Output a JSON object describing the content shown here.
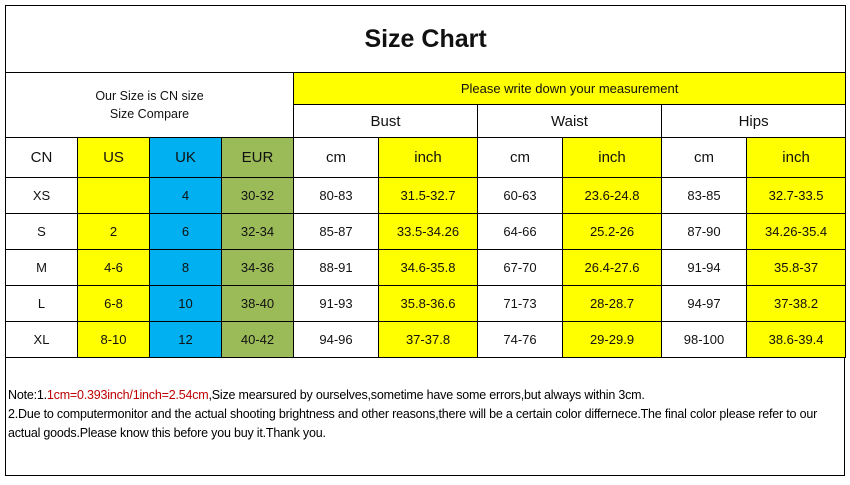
{
  "title": "Size Chart",
  "our_size": "Our Size is CN size",
  "size_compare": "Size Compare",
  "measure_prompt": "Please write down your measurement",
  "groups": [
    "Bust",
    "Waist",
    "Hips"
  ],
  "columns": [
    "CN",
    "US",
    "UK",
    "EUR",
    "cm",
    "inch",
    "cm",
    "inch",
    "cm",
    "inch"
  ],
  "rows": [
    [
      "XS",
      "",
      "4",
      "30-32",
      "80-83",
      "31.5-32.7",
      "60-63",
      "23.6-24.8",
      "83-85",
      "32.7-33.5"
    ],
    [
      "S",
      "2",
      "6",
      "32-34",
      "85-87",
      "33.5-34.26",
      "64-66",
      "25.2-26",
      "87-90",
      "34.26-35.4"
    ],
    [
      "M",
      "4-6",
      "8",
      "34-36",
      "88-91",
      "34.6-35.8",
      "67-70",
      "26.4-27.6",
      "91-94",
      "35.8-37"
    ],
    [
      "L",
      "6-8",
      "10",
      "38-40",
      "91-93",
      "35.8-36.6",
      "71-73",
      "28-28.7",
      "94-97",
      "37-38.2"
    ],
    [
      "XL",
      "8-10",
      "12",
      "40-42",
      "94-96",
      "37-37.8",
      "74-76",
      "29-29.9",
      "98-100",
      "38.6-39.4"
    ]
  ],
  "colors": {
    "yellow": "#ffff00",
    "blue": "#00b0f0",
    "green": "#9bbb59",
    "note_red": "#c00000"
  },
  "notes": {
    "prefix": "Note:1.",
    "conversion": "1cm=0.393inch/1inch=2.54cm",
    "line1_rest": ",Size mearsured by ourselves,sometime have some errors,but always within 3cm.",
    "line2": "2.Due to computermonitor and the actual shooting brightness and other reasons,there will be a certain color differnece.The final color please refer to our actual goods.Please know this before you buy it.Thank you."
  }
}
